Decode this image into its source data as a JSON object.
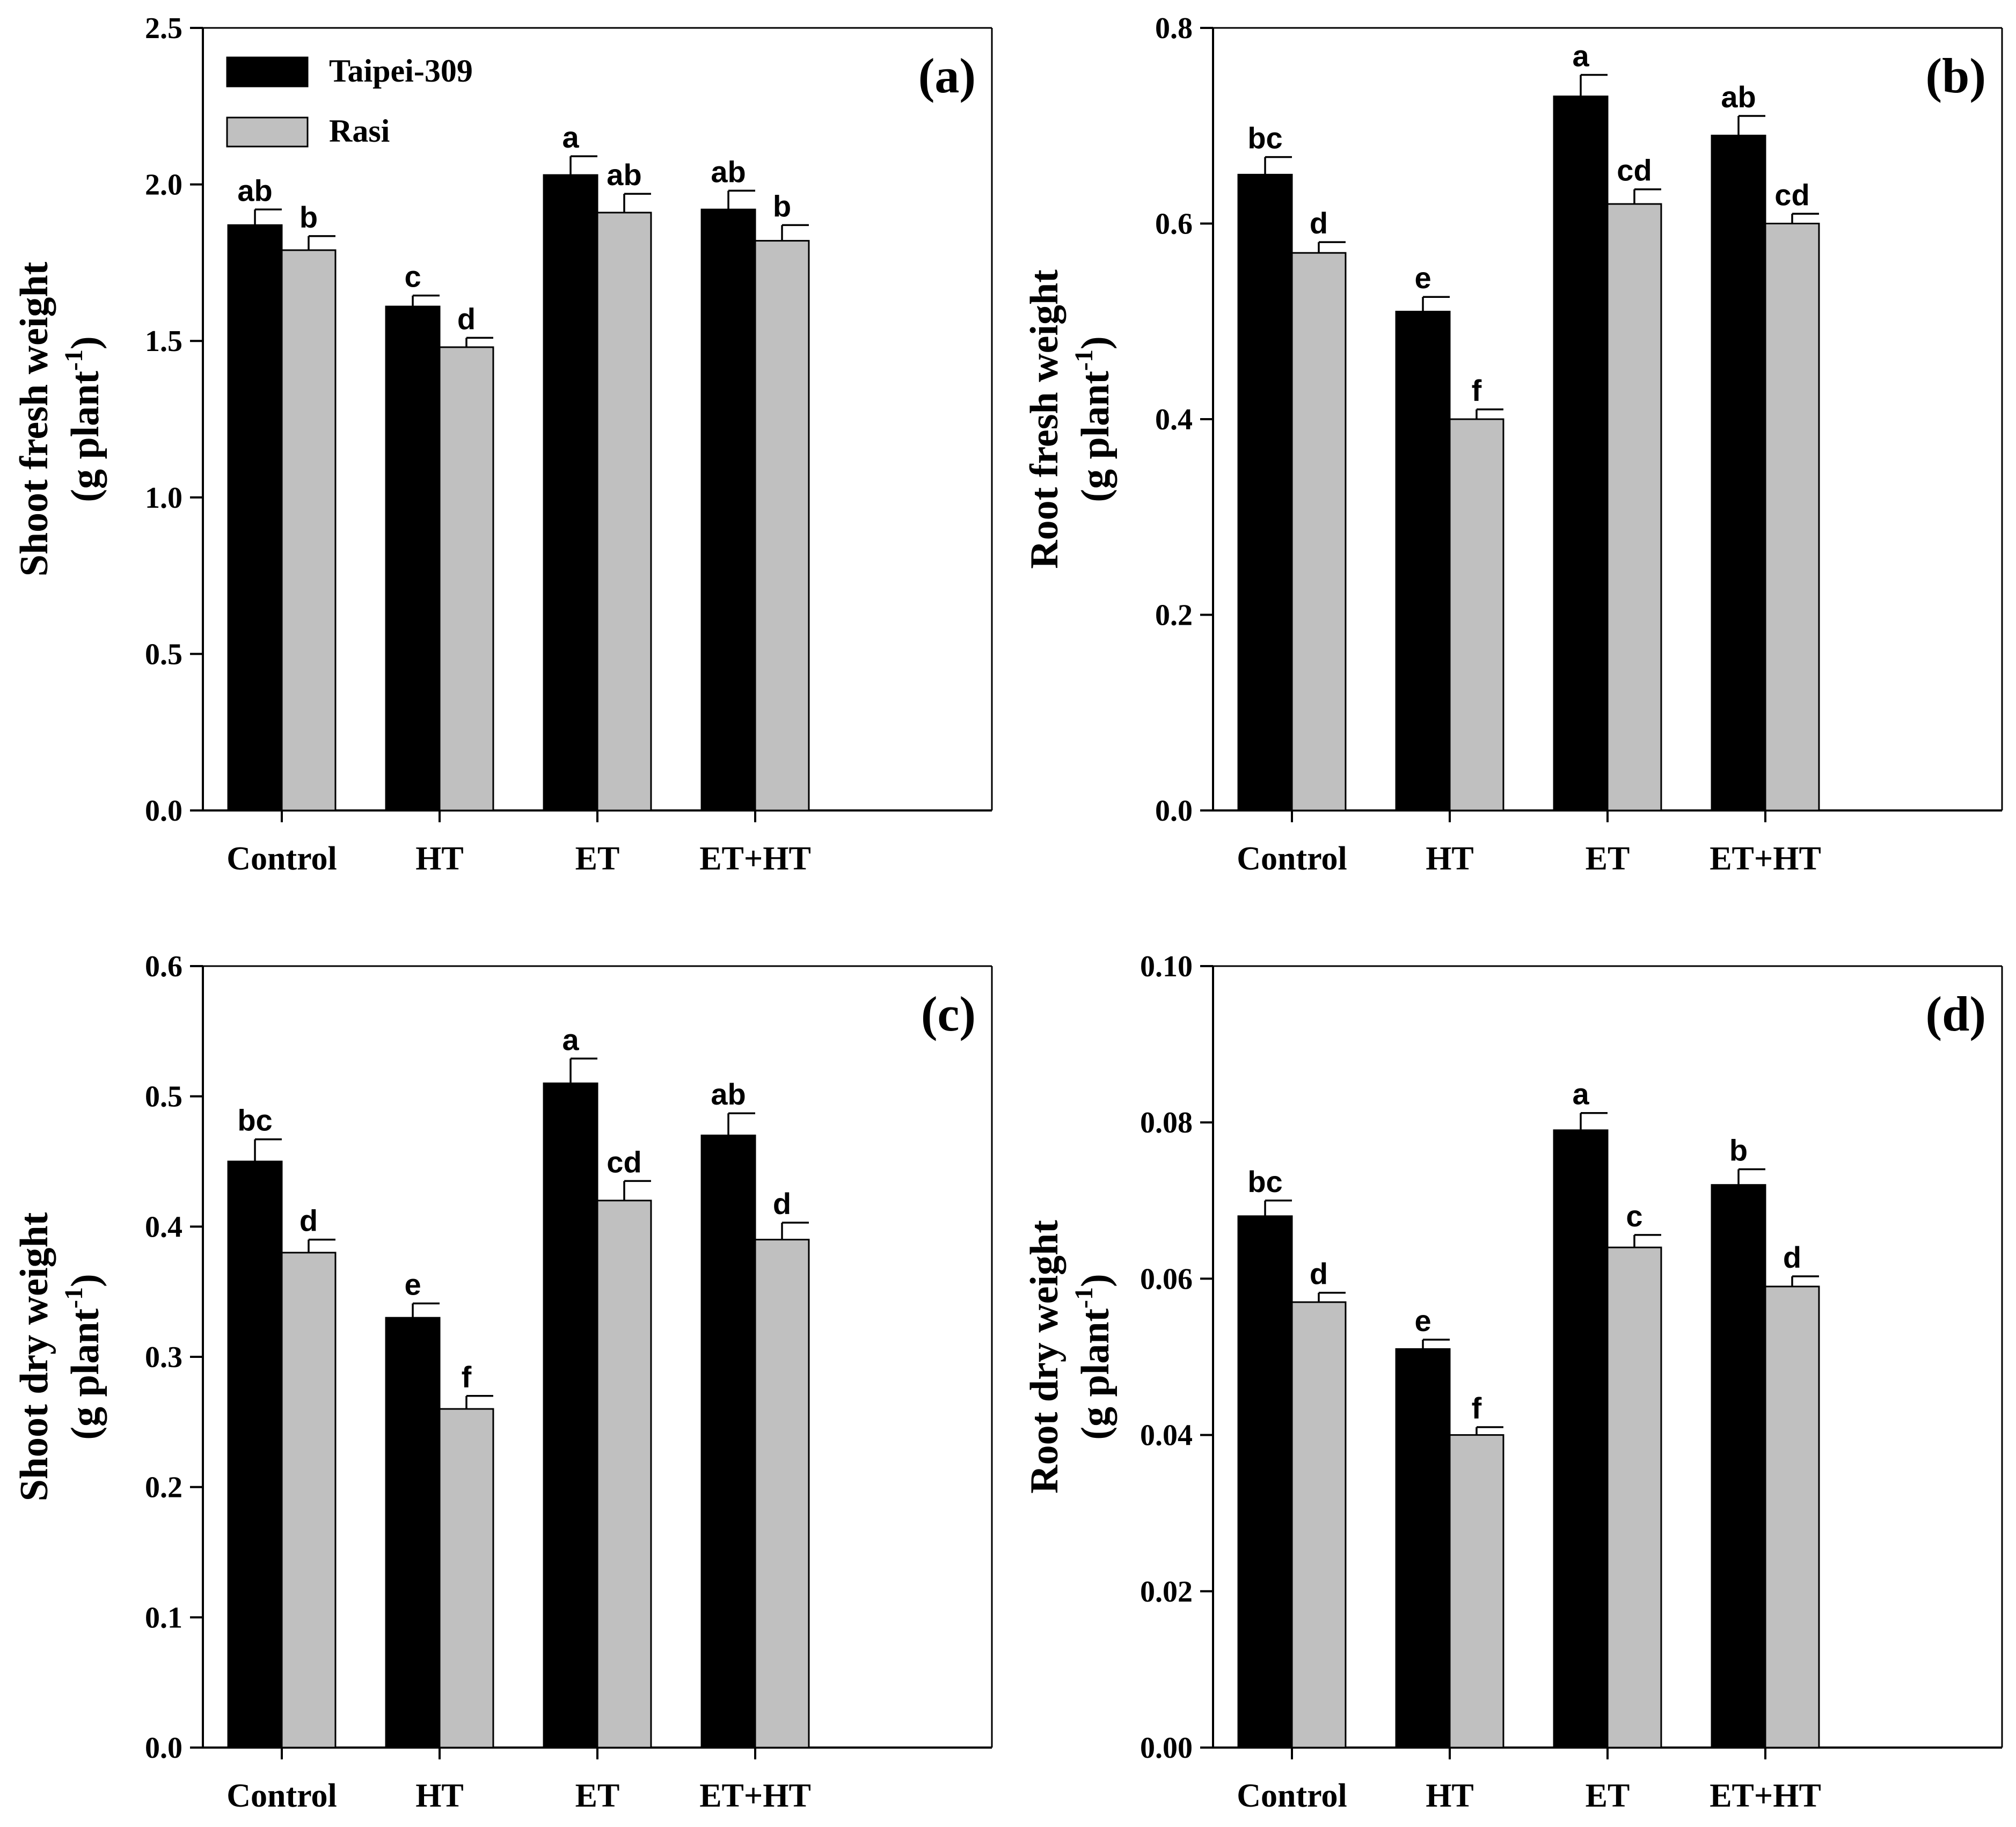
{
  "colors": {
    "series_1": "#000000",
    "series_2": "#c0c0c0",
    "axis": "#000000"
  },
  "legend": {
    "items": [
      {
        "name": "Taipei-309",
        "color": "#000000"
      },
      {
        "name": "Rasi",
        "color": "#c0c0c0"
      }
    ]
  },
  "chart_data": [
    {
      "type": "bar",
      "panel_label": "(a)",
      "categories": [
        "Control",
        "HT",
        "ET",
        "ET+HT"
      ],
      "ylabel_line1": "Shoot fresh weight",
      "ylabel_line2_main": "(g plant",
      "ylabel_line2_sup": "-1",
      "ylabel_line2_end": ")",
      "ylim": [
        0,
        2.5
      ],
      "yticks": [
        "0.0",
        "0.5",
        "1.0",
        "1.5",
        "2.0",
        "2.5"
      ],
      "legend_position": "top-left",
      "series": [
        {
          "name": "Taipei-309",
          "values": [
            1.87,
            1.61,
            2.03,
            1.92
          ],
          "errors": [
            0.05,
            0.035,
            0.06,
            0.06
          ],
          "letters": [
            "ab",
            "c",
            "a",
            "ab"
          ]
        },
        {
          "name": "Rasi",
          "values": [
            1.79,
            1.48,
            1.91,
            1.82
          ],
          "errors": [
            0.045,
            0.03,
            0.06,
            0.05
          ],
          "letters": [
            "b",
            "d",
            "ab",
            "b"
          ]
        }
      ]
    },
    {
      "type": "bar",
      "panel_label": "(b)",
      "categories": [
        "Control",
        "HT",
        "ET",
        "ET+HT"
      ],
      "ylabel_line1": "Root fresh weight",
      "ylabel_line2_main": "(g plant",
      "ylabel_line2_sup": "-1",
      "ylabel_line2_end": ")",
      "ylim": [
        0,
        0.8
      ],
      "yticks": [
        "0.0",
        "0.2",
        "0.4",
        "0.6",
        "0.8"
      ],
      "series": [
        {
          "name": "Taipei-309",
          "values": [
            0.65,
            0.51,
            0.73,
            0.69
          ],
          "errors": [
            0.018,
            0.015,
            0.022,
            0.02
          ],
          "letters": [
            "bc",
            "e",
            "a",
            "ab"
          ]
        },
        {
          "name": "Rasi",
          "values": [
            0.57,
            0.4,
            0.62,
            0.6
          ],
          "errors": [
            0.011,
            0.01,
            0.015,
            0.01
          ],
          "letters": [
            "d",
            "f",
            "cd",
            "cd"
          ]
        }
      ]
    },
    {
      "type": "bar",
      "panel_label": "(c)",
      "categories": [
        "Control",
        "HT",
        "ET",
        "ET+HT"
      ],
      "ylabel_line1": "Shoot dry weight",
      "ylabel_line2_main": "(g plant",
      "ylabel_line2_sup": "-1",
      "ylabel_line2_end": ")",
      "ylim": [
        0,
        0.6
      ],
      "yticks": [
        "0.0",
        "0.1",
        "0.2",
        "0.3",
        "0.4",
        "0.5",
        "0.6"
      ],
      "series": [
        {
          "name": "Taipei-309",
          "values": [
            0.45,
            0.33,
            0.51,
            0.47
          ],
          "errors": [
            0.017,
            0.011,
            0.019,
            0.017
          ],
          "letters": [
            "bc",
            "e",
            "a",
            "ab"
          ]
        },
        {
          "name": "Rasi",
          "values": [
            0.38,
            0.26,
            0.42,
            0.39
          ],
          "errors": [
            0.01,
            0.01,
            0.015,
            0.013
          ],
          "letters": [
            "d",
            "f",
            "cd",
            "d"
          ]
        }
      ]
    },
    {
      "type": "bar",
      "panel_label": "(d)",
      "categories": [
        "Control",
        "HT",
        "ET",
        "ET+HT"
      ],
      "ylabel_line1": "Root dry weight",
      "ylabel_line2_main": "(g plant",
      "ylabel_line2_sup": "-1",
      "ylabel_line2_end": ")",
      "ylim": [
        0,
        0.1
      ],
      "yticks": [
        "0.00",
        "0.02",
        "0.04",
        "0.06",
        "0.08",
        "0.10"
      ],
      "series": [
        {
          "name": "Taipei-309",
          "values": [
            0.068,
            0.051,
            0.079,
            0.072
          ],
          "errors": [
            0.002,
            0.0012,
            0.0022,
            0.002
          ],
          "letters": [
            "bc",
            "e",
            "a",
            "b"
          ]
        },
        {
          "name": "Rasi",
          "values": [
            0.057,
            0.04,
            0.064,
            0.059
          ],
          "errors": [
            0.0012,
            0.001,
            0.0016,
            0.0013
          ],
          "letters": [
            "d",
            "f",
            "c",
            "d"
          ]
        }
      ]
    }
  ]
}
